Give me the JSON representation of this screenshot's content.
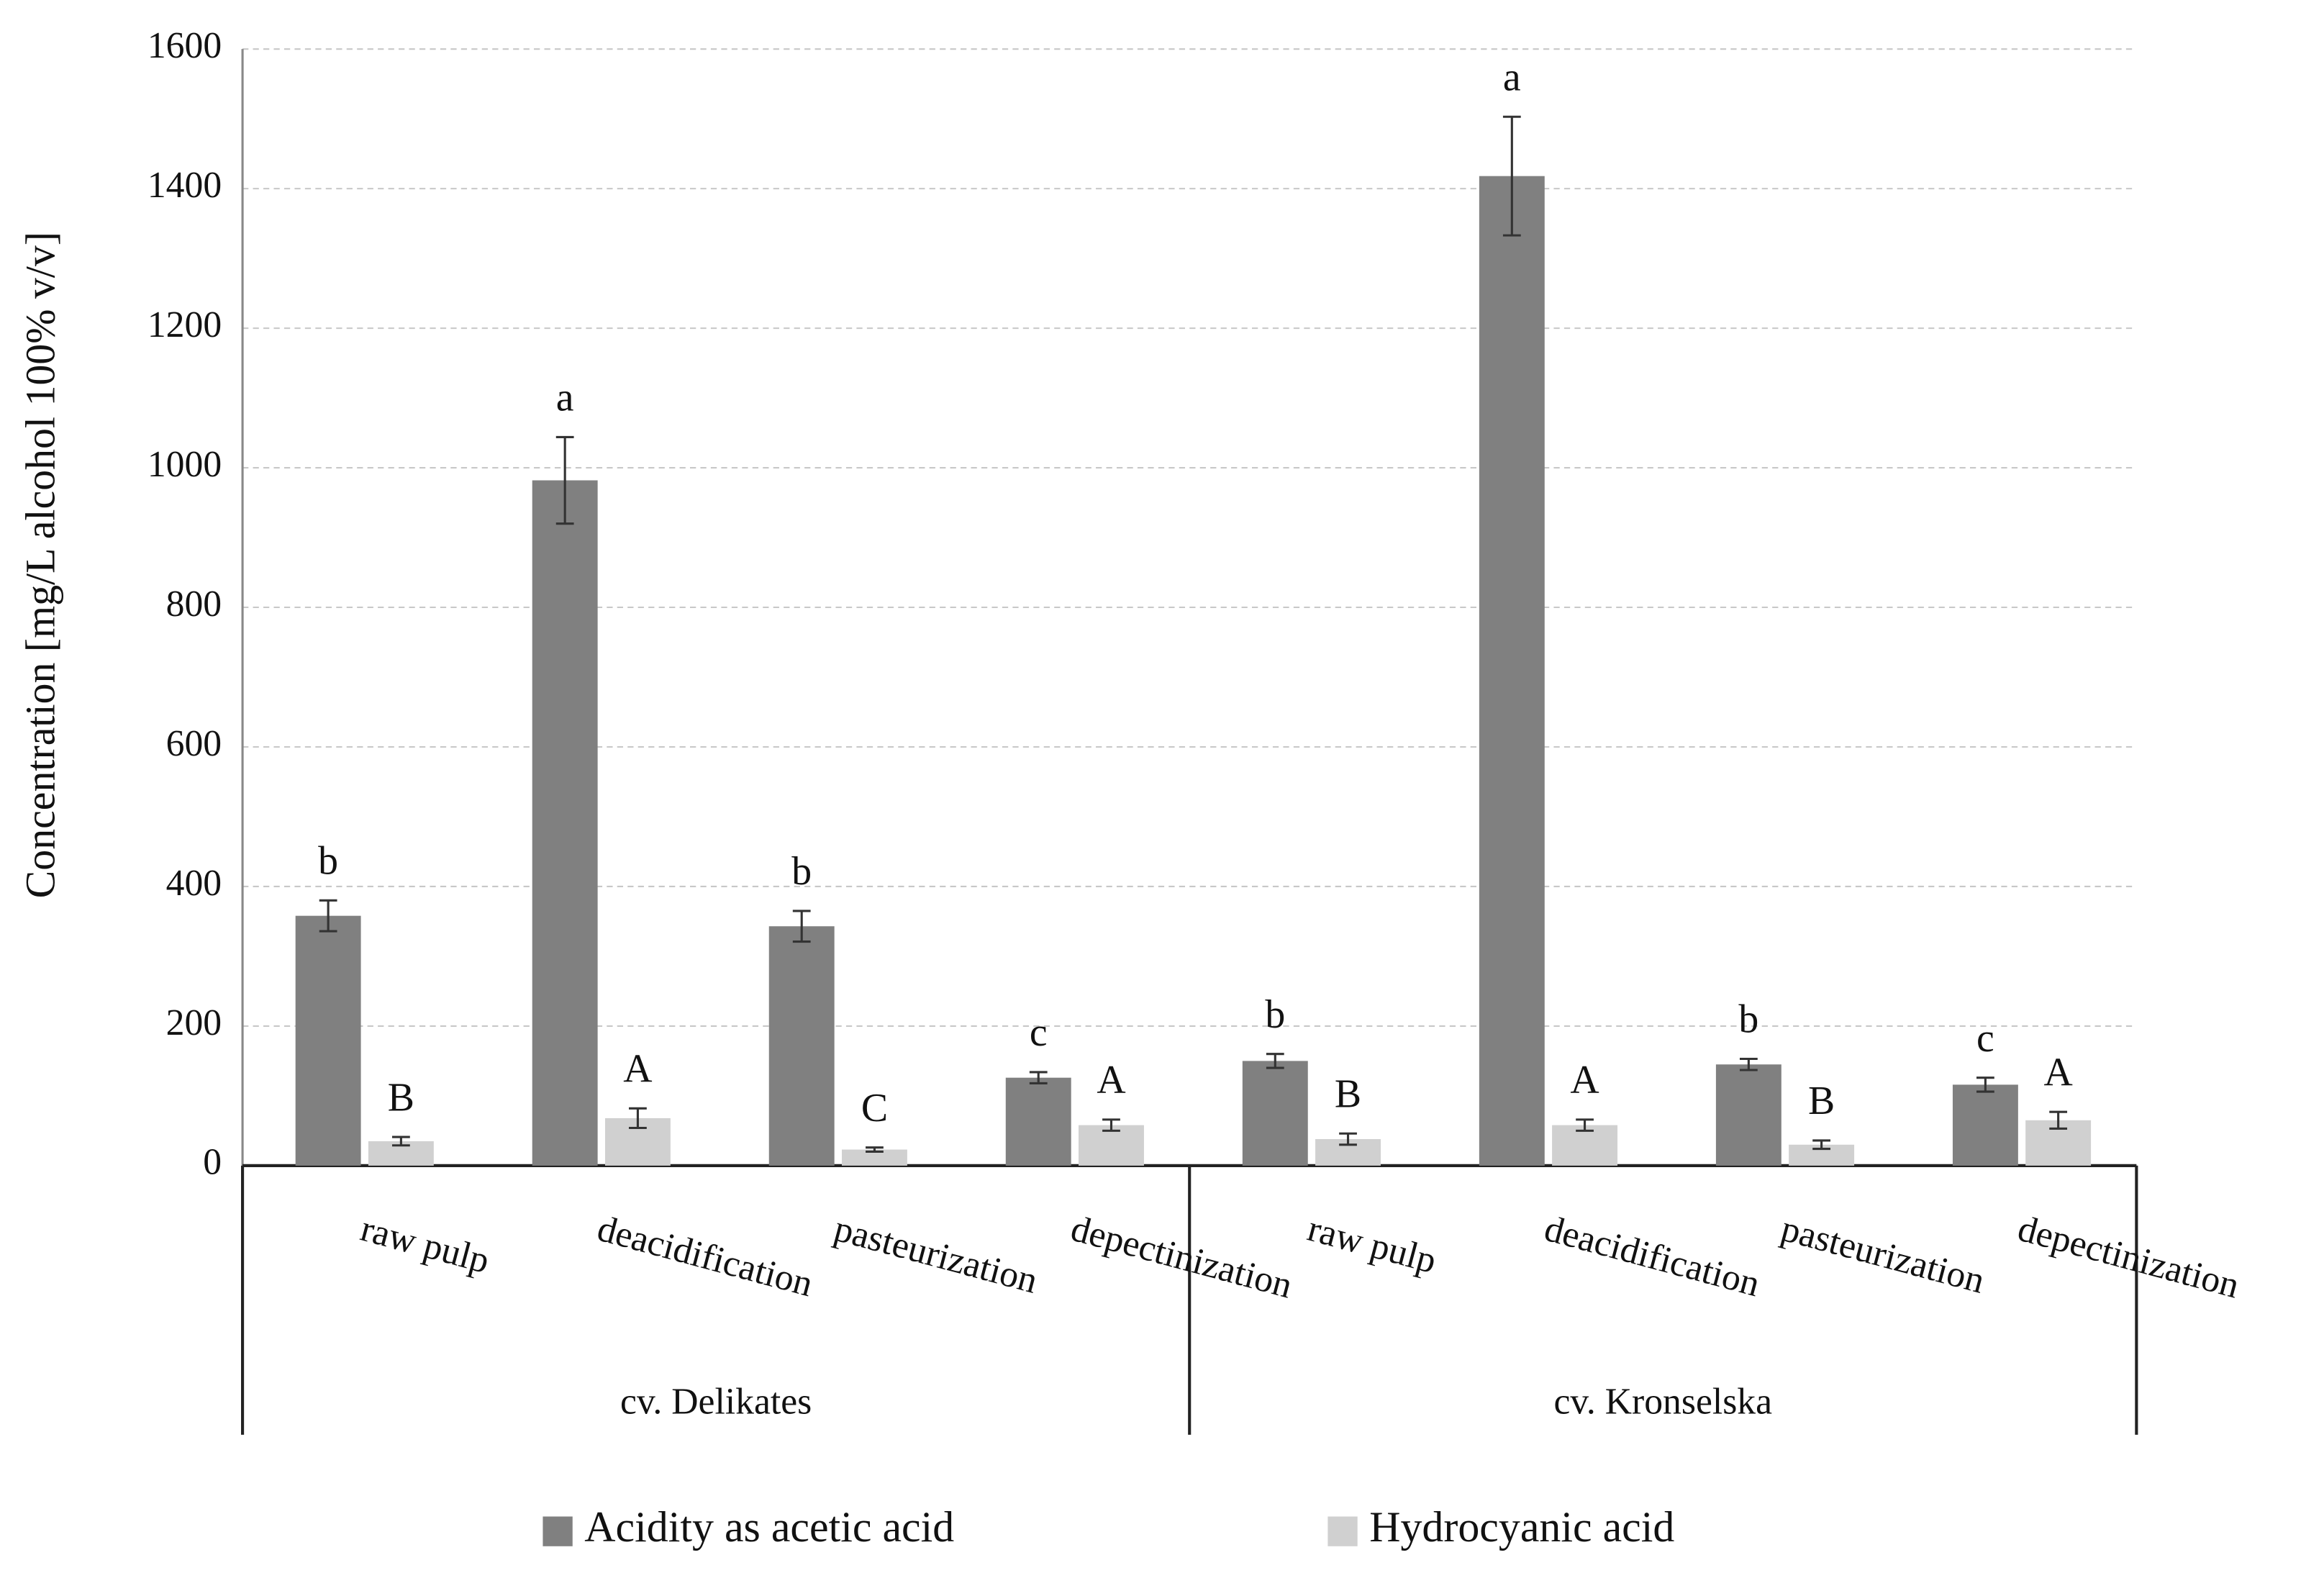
{
  "chart_data": {
    "type": "bar",
    "y_label": "Concentration  [mg/L alcohol 100% v/v]",
    "groups": [
      "cv. Delikates",
      "cv. Kronselska"
    ],
    "categories": [
      "raw pulp",
      "deacidification",
      "pasteurization",
      "depectinization",
      "raw pulp",
      "deacidification",
      "pasteurization",
      "depectinization"
    ],
    "series": [
      {
        "name": "Acidity as acetic acid",
        "color": "#808080",
        "values": [
          358,
          982,
          343,
          126,
          150,
          1418,
          145,
          116
        ],
        "errors": [
          22,
          62,
          22,
          8,
          10,
          85,
          8,
          10
        ],
        "letters": [
          "b",
          "a",
          "b",
          "c",
          "b",
          "a",
          "b",
          "c"
        ]
      },
      {
        "name": "Hydrocyanic acid",
        "color": "#d0d0d0",
        "values": [
          35,
          68,
          23,
          58,
          38,
          58,
          30,
          65
        ],
        "errors": [
          6,
          14,
          3,
          8,
          8,
          8,
          6,
          12
        ],
        "letters": [
          "B",
          "A",
          "C",
          "A",
          "B",
          "A",
          "B",
          "A"
        ]
      }
    ],
    "ylim": [
      0,
      1600
    ],
    "yticks": [
      0,
      200,
      400,
      600,
      800,
      1000,
      1200,
      1400,
      1600
    ],
    "grid": true
  }
}
